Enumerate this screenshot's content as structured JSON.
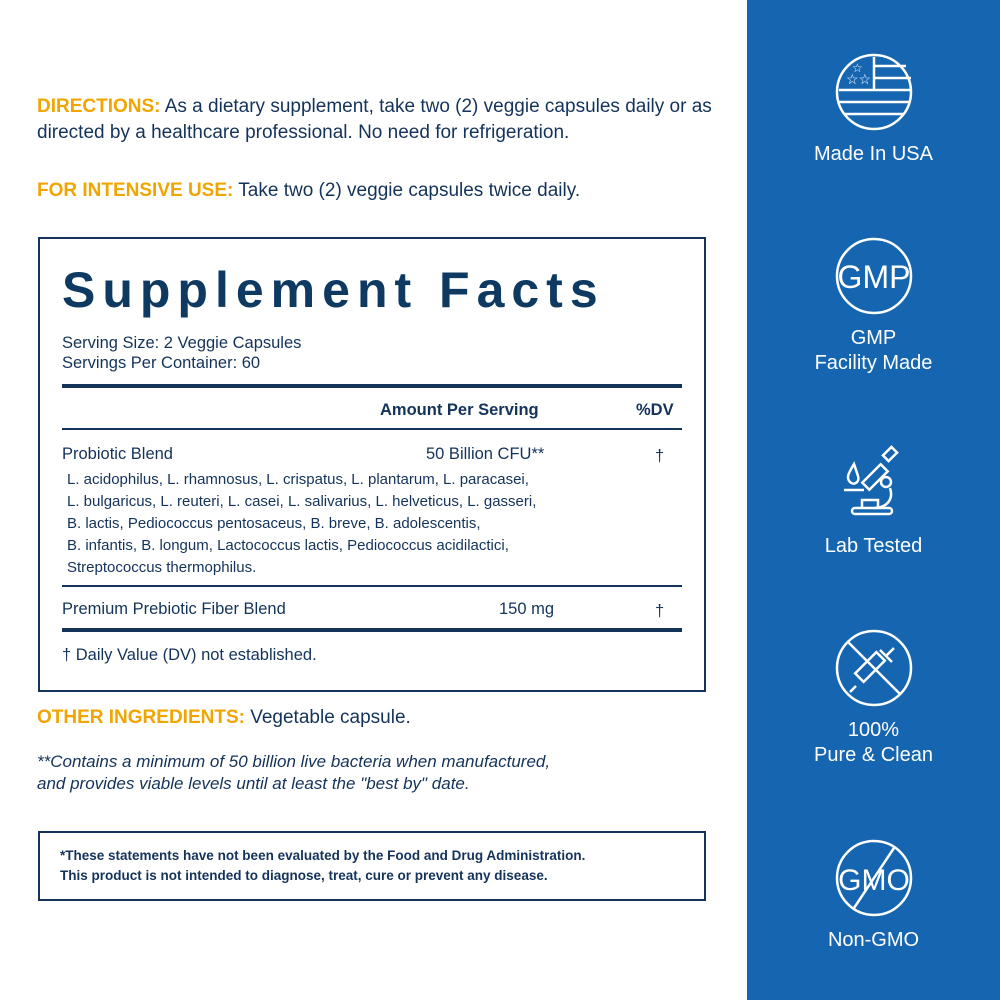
{
  "directions": {
    "label": "DIRECTIONS:",
    "text": "As a dietary supplement, take two (2) veggie capsules daily or as directed by a healthcare professional. No need for refrigeration."
  },
  "intensive": {
    "label": "FOR INTENSIVE USE:",
    "text": "Take two (2) veggie capsules twice daily."
  },
  "facts": {
    "title": "Supplement Facts",
    "serving_size": "Serving Size: 2 Veggie Capsules",
    "servings_per_container": "Servings Per Container: 60",
    "header_amount": "Amount Per Serving",
    "header_dv": "%DV",
    "rows": [
      {
        "name": "Probiotic Blend",
        "amount": "50 Billion CFU**",
        "dv": "†"
      },
      {
        "name": "Premium Prebiotic Fiber Blend",
        "amount": "150 mg",
        "dv": "†"
      }
    ],
    "strains": [
      "L. acidophilus, L. rhamnosus, L. crispatus, L. plantarum, L. paracasei,",
      "L. bulgaricus, L. reuteri, L. casei, L. salivarius, L. helveticus, L. gasseri,",
      "B. lactis, Pediococcus pentosaceus, B. breve, B. adolescentis,",
      "B. infantis, B. longum, Lactococcus lactis, Pediococcus acidilactici,",
      "Streptococcus thermophilus."
    ],
    "footnote": "† Daily Value (DV) not established."
  },
  "other": {
    "label": "OTHER INGREDIENTS:",
    "text": "Vegetable capsule."
  },
  "note": [
    "**Contains a minimum of 50 billion live bacteria when manufactured,",
    "and provides viable levels until at least the \"best by\" date."
  ],
  "disclaimer": [
    "*These statements have not been evaluated by the Food and Drug Administration.",
    "This product is not intended to diagnose, treat, cure or prevent any disease."
  ],
  "badges": [
    {
      "icon": "us-flag-icon",
      "label": "Made In USA"
    },
    {
      "icon": "gmp-icon",
      "label": "GMP",
      "label2": "Facility Made",
      "icon_text": "GMP"
    },
    {
      "icon": "microscope-icon",
      "label": "Lab Tested"
    },
    {
      "icon": "no-syringe-icon",
      "label": "100%",
      "label2": "Pure & Clean"
    },
    {
      "icon": "non-gmo-icon",
      "label": "Non-GMO",
      "icon_text": "GMO"
    }
  ],
  "colors": {
    "accent": "#f0a500",
    "navy": "#14335a",
    "panel": "#1565b0"
  }
}
